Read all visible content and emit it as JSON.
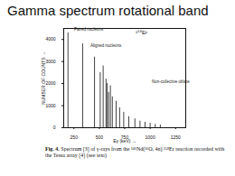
{
  "chart_data": {
    "type": "stem",
    "title": "Gamma spectrum rotational band",
    "xlabel": "Eγ (keV)",
    "ylabel": "NUMBER OF COUNTS",
    "x": [
      192,
      336,
      453,
      509,
      538,
      566,
      578,
      591,
      609,
      628,
      665,
      700,
      740,
      790,
      850,
      900,
      950,
      1000,
      1050,
      1100
    ],
    "values": [
      4300,
      3800,
      3200,
      2500,
      2800,
      2200,
      2000,
      1600,
      1900,
      1400,
      1200,
      900,
      700,
      500,
      400,
      300,
      250,
      200,
      150,
      120
    ],
    "color": "#111111",
    "xlim": [
      150,
      1350
    ],
    "xticks": [
      250,
      500,
      750,
      1000,
      1250
    ],
    "ylim": [
      0,
      4500
    ],
    "yticks": [
      0,
      1000,
      2000,
      3000,
      4000
    ],
    "grid": false,
    "annotations": [
      "¹⁵⁸Er",
      "Paired nucleons",
      "Aligned nucleons",
      "Non-collective oblate"
    ],
    "caption_label": "Fig. 4.",
    "caption": "Spectrum [3] of γ-rays from the ¹⁴⁶Nd(¹⁶O, 4n) ¹⁵⁸Er reaction recorded with the Tessa array [4] (see text)"
  }
}
